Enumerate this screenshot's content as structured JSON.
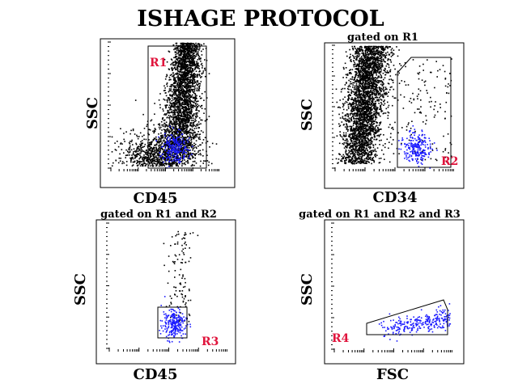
{
  "title": "ISHAGE PROTOCOL",
  "colors": {
    "background": "#ffffff",
    "axis": "#000000",
    "events_ungated": "#000000",
    "events_cd34": "#1a1aff",
    "region_label": "#e0143c"
  },
  "chart_data": [
    {
      "type": "scatter",
      "panel": "top-left",
      "caption": "",
      "xlabel": "CD45",
      "ylabel": "SSC",
      "xlim": [
        0,
        1
      ],
      "ylim": [
        0,
        1
      ],
      "region": {
        "label": "R1",
        "shape": "rectangle",
        "x": [
          0.31,
          0.88
        ],
        "y": [
          0.06,
          1.0
        ]
      },
      "series": [
        {
          "color": "black",
          "approx_events": 5000,
          "cluster_center": [
            0.63,
            0.55
          ]
        },
        {
          "color": "blue",
          "approx_events": 220,
          "cluster_center": [
            0.58,
            0.17
          ]
        }
      ]
    },
    {
      "type": "scatter",
      "panel": "top-right",
      "caption": "gated on R1",
      "xlabel": "CD34",
      "ylabel": "SSC",
      "xlim": [
        0,
        1
      ],
      "ylim": [
        0,
        1
      ],
      "region": {
        "label": "R2",
        "shape": "polygon",
        "x": [
          0.56,
          0.95
        ],
        "y": [
          0.05,
          0.85
        ]
      },
      "series": [
        {
          "color": "black",
          "approx_events": 4500,
          "cluster_center": [
            0.22,
            0.55
          ]
        },
        {
          "color": "blue",
          "approx_events": 230,
          "cluster_center": [
            0.68,
            0.17
          ]
        }
      ]
    },
    {
      "type": "scatter",
      "panel": "bottom-left",
      "caption": "gated on R1 and R2",
      "xlabel": "CD45",
      "ylabel": "SSC",
      "xlim": [
        0,
        1
      ],
      "ylim": [
        0,
        1
      ],
      "region": {
        "label": "R3",
        "shape": "rectangle",
        "x": [
          0.43,
          0.64
        ],
        "y": [
          0.05,
          0.43
        ]
      },
      "series": [
        {
          "color": "black",
          "approx_events": 110,
          "cluster_center": [
            0.57,
            0.45
          ]
        },
        {
          "color": "blue",
          "approx_events": 240,
          "cluster_center": [
            0.54,
            0.2
          ]
        }
      ]
    },
    {
      "type": "scatter",
      "panel": "bottom-right",
      "caption": "gated on R1 and R2 and R3",
      "xlabel": "FSC",
      "ylabel": "SSC",
      "xlim": [
        0,
        1
      ],
      "ylim": [
        0,
        1
      ],
      "region": {
        "label": "R4",
        "shape": "polygon",
        "x": [
          0.3,
          0.97
        ],
        "y": [
          0.05,
          0.43
        ]
      },
      "series": [
        {
          "color": "blue",
          "approx_events": 260,
          "cluster_center": [
            0.7,
            0.22
          ]
        }
      ]
    }
  ]
}
